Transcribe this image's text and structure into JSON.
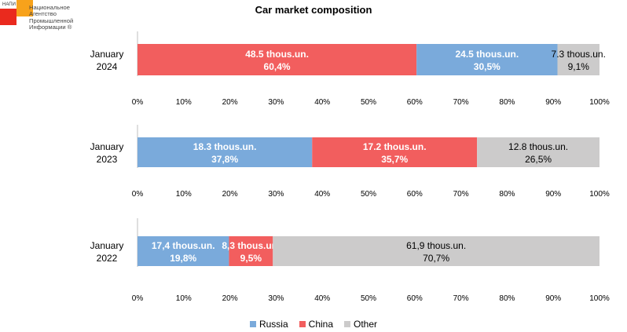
{
  "logo": {
    "abbr": "НАПИ",
    "name_lines": [
      "Национальное",
      "Агентство",
      "Промышленной",
      "Информации ®"
    ]
  },
  "colors": {
    "Russia": "#7aaadb",
    "China": "#f25e5e",
    "Other": "#cccbcb"
  },
  "chart_data": {
    "type": "bar",
    "orientation": "horizontal",
    "stacked": "percent",
    "title": "Car market composition",
    "legend": [
      "Russia",
      "China",
      "Other"
    ],
    "legend_position": "bottom",
    "x_ticks": [
      "0%",
      "10%",
      "20%",
      "30%",
      "40%",
      "50%",
      "60%",
      "70%",
      "80%",
      "90%",
      "100%"
    ],
    "xlim": [
      0,
      100
    ],
    "panels": [
      {
        "category": [
          "January",
          "2024"
        ],
        "segments": [
          {
            "series": "China",
            "percent": 60.4,
            "label_value": "48.5 thous.un.",
            "label_percent": "60,4%"
          },
          {
            "series": "Russia",
            "percent": 30.5,
            "label_value": "24.5 thous.un.",
            "label_percent": "30,5%"
          },
          {
            "series": "Other",
            "percent": 9.1,
            "label_value": "7.3 thous.un.",
            "label_percent": "9,1%"
          }
        ]
      },
      {
        "category": [
          "January",
          "2023"
        ],
        "segments": [
          {
            "series": "Russia",
            "percent": 37.8,
            "label_value": "18.3 thous.un.",
            "label_percent": "37,8%"
          },
          {
            "series": "China",
            "percent": 35.7,
            "label_value": "17.2 thous.un.",
            "label_percent": "35,7%"
          },
          {
            "series": "Other",
            "percent": 26.5,
            "label_value": "12.8 thous.un.",
            "label_percent": "26,5%"
          }
        ]
      },
      {
        "category": [
          "January",
          "2022"
        ],
        "segments": [
          {
            "series": "Russia",
            "percent": 19.8,
            "label_value": "17,4 thous.un.",
            "label_percent": "19,8%"
          },
          {
            "series": "China",
            "percent": 9.5,
            "label_value": "8,3 thous.un.",
            "label_percent": "9,5%"
          },
          {
            "series": "Other",
            "percent": 70.7,
            "label_value": "61,9 thous.un.",
            "label_percent": "70,7%"
          }
        ]
      }
    ]
  }
}
